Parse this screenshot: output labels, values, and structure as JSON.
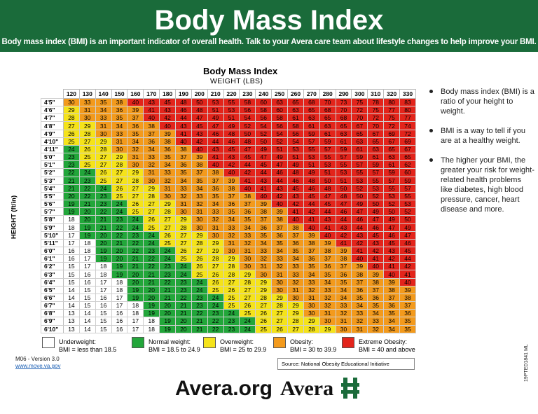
{
  "header": {
    "title": "Body Mass Index",
    "subtitle": "Body mass index (BMI) is an important indicator of overall health. Talk to your Avera care team about lifestyle changes to help improve your BMI."
  },
  "chart": {
    "title": "Body Mass Index",
    "weight_label": "WEIGHT (LBS)",
    "height_label": "HEIGHT (ft/in)"
  },
  "colors": {
    "underweight": "#ffffff",
    "normal": "#22a63a",
    "overweight": "#f5e31a",
    "obese": "#f39a1c",
    "extreme": "#e3241b",
    "header_bg": "#1a6b3a"
  },
  "chart_data": {
    "type": "table",
    "title": "Body Mass Index",
    "xlabel": "WEIGHT (LBS)",
    "ylabel": "HEIGHT (ft/in)",
    "columns": [
      "120",
      "130",
      "140",
      "150",
      "160",
      "170",
      "180",
      "190",
      "200",
      "210",
      "220",
      "230",
      "240",
      "250",
      "260",
      "270",
      "280",
      "290",
      "300",
      "310",
      "320",
      "330"
    ],
    "rows": [
      {
        "height": "4'5\"",
        "values": [
          30,
          33,
          35,
          38,
          40,
          43,
          45,
          48,
          50,
          53,
          55,
          58,
          60,
          63,
          65,
          68,
          70,
          73,
          75,
          78,
          80,
          83
        ]
      },
      {
        "height": "4'6\"",
        "values": [
          29,
          31,
          34,
          36,
          39,
          41,
          43,
          46,
          48,
          51,
          53,
          56,
          58,
          60,
          63,
          65,
          68,
          70,
          72,
          75,
          77,
          80
        ]
      },
      {
        "height": "4'7\"",
        "values": [
          28,
          30,
          33,
          35,
          37,
          40,
          42,
          44,
          47,
          49,
          51,
          54,
          56,
          58,
          61,
          63,
          65,
          68,
          70,
          72,
          75,
          77
        ]
      },
      {
        "height": "4'8\"",
        "values": [
          27,
          29,
          31,
          34,
          36,
          38,
          40,
          43,
          45,
          47,
          49,
          52,
          54,
          56,
          58,
          61,
          63,
          65,
          67,
          70,
          72,
          74
        ]
      },
      {
        "height": "4'9\"",
        "values": [
          26,
          28,
          30,
          33,
          35,
          37,
          39,
          41,
          43,
          46,
          48,
          50,
          52,
          54,
          56,
          59,
          61,
          63,
          65,
          67,
          69,
          72
        ]
      },
      {
        "height": "4'10\"",
        "values": [
          25,
          27,
          29,
          31,
          34,
          36,
          38,
          40,
          42,
          44,
          46,
          48,
          50,
          52,
          54,
          57,
          59,
          61,
          63,
          65,
          67,
          69
        ]
      },
      {
        "height": "4'11\"",
        "values": [
          24,
          26,
          28,
          30,
          32,
          34,
          36,
          38,
          40,
          43,
          45,
          47,
          49,
          51,
          53,
          55,
          57,
          59,
          61,
          63,
          65,
          67
        ]
      },
      {
        "height": "5'0\"",
        "values": [
          23,
          25,
          27,
          29,
          31,
          33,
          35,
          37,
          39,
          41,
          43,
          45,
          47,
          49,
          51,
          53,
          55,
          57,
          59,
          61,
          63,
          65
        ]
      },
      {
        "height": "5'1\"",
        "values": [
          23,
          25,
          27,
          28,
          30,
          32,
          34,
          36,
          38,
          40,
          42,
          44,
          45,
          47,
          49,
          51,
          53,
          55,
          57,
          59,
          61,
          62
        ]
      },
      {
        "height": "5'2\"",
        "values": [
          22,
          24,
          26,
          27,
          29,
          31,
          33,
          35,
          37,
          38,
          40,
          42,
          44,
          46,
          48,
          49,
          51,
          53,
          55,
          57,
          59,
          60
        ]
      },
      {
        "height": "5'3\"",
        "values": [
          21,
          23,
          25,
          27,
          28,
          30,
          32,
          34,
          35,
          37,
          39,
          41,
          43,
          44,
          46,
          48,
          50,
          51,
          53,
          55,
          57,
          59
        ]
      },
      {
        "height": "5'4\"",
        "values": [
          21,
          22,
          24,
          26,
          27,
          29,
          31,
          33,
          34,
          36,
          38,
          40,
          41,
          43,
          45,
          46,
          48,
          50,
          52,
          53,
          55,
          57
        ]
      },
      {
        "height": "5'5\"",
        "values": [
          20,
          22,
          23,
          25,
          27,
          28,
          30,
          32,
          33,
          35,
          37,
          38,
          40,
          42,
          43,
          45,
          47,
          48,
          50,
          52,
          53,
          55
        ]
      },
      {
        "height": "5'6\"",
        "values": [
          19,
          21,
          23,
          24,
          26,
          27,
          29,
          31,
          32,
          34,
          36,
          37,
          39,
          40,
          42,
          44,
          45,
          47,
          49,
          50,
          52,
          53
        ]
      },
      {
        "height": "5'7\"",
        "values": [
          19,
          20,
          22,
          24,
          25,
          27,
          28,
          30,
          31,
          33,
          35,
          36,
          38,
          39,
          41,
          42,
          44,
          46,
          47,
          49,
          50,
          52
        ]
      },
      {
        "height": "5'8\"",
        "values": [
          18,
          20,
          21,
          23,
          24,
          26,
          27,
          29,
          30,
          32,
          34,
          35,
          37,
          38,
          40,
          41,
          43,
          44,
          46,
          47,
          49,
          50
        ]
      },
      {
        "height": "5'9\"",
        "values": [
          18,
          19,
          21,
          22,
          24,
          25,
          27,
          28,
          30,
          31,
          33,
          34,
          36,
          37,
          38,
          40,
          41,
          43,
          44,
          46,
          47,
          49
        ]
      },
      {
        "height": "5'10\"",
        "values": [
          17,
          19,
          20,
          22,
          23,
          24,
          26,
          27,
          29,
          30,
          32,
          33,
          35,
          36,
          37,
          39,
          40,
          42,
          43,
          45,
          46,
          47
        ]
      },
      {
        "height": "5'11\"",
        "values": [
          17,
          18,
          20,
          21,
          22,
          24,
          25,
          27,
          28,
          29,
          31,
          32,
          34,
          35,
          36,
          38,
          39,
          41,
          42,
          43,
          45,
          46
        ]
      },
      {
        "height": "6'0\"",
        "values": [
          16,
          18,
          19,
          20,
          22,
          23,
          24,
          26,
          27,
          29,
          30,
          31,
          33,
          34,
          35,
          37,
          38,
          39,
          41,
          42,
          43,
          45
        ]
      },
      {
        "height": "6'1\"",
        "values": [
          16,
          17,
          19,
          20,
          21,
          22,
          24,
          25,
          26,
          28,
          29,
          30,
          32,
          33,
          34,
          36,
          37,
          38,
          40,
          41,
          42,
          44
        ]
      },
      {
        "height": "6'2\"",
        "values": [
          15,
          17,
          18,
          19,
          21,
          22,
          23,
          24,
          26,
          27,
          28,
          30,
          31,
          32,
          33,
          35,
          36,
          37,
          39,
          40,
          41,
          42
        ]
      },
      {
        "height": "6'3\"",
        "values": [
          15,
          16,
          18,
          19,
          20,
          21,
          23,
          24,
          25,
          26,
          28,
          29,
          30,
          31,
          33,
          34,
          35,
          36,
          38,
          39,
          40,
          41
        ]
      },
      {
        "height": "6'4\"",
        "values": [
          15,
          16,
          17,
          18,
          20,
          21,
          22,
          23,
          24,
          26,
          27,
          28,
          29,
          30,
          32,
          33,
          34,
          35,
          37,
          38,
          39,
          40
        ]
      },
      {
        "height": "6'5\"",
        "values": [
          14,
          15,
          17,
          18,
          19,
          20,
          21,
          23,
          24,
          25,
          26,
          27,
          29,
          30,
          31,
          32,
          33,
          34,
          36,
          37,
          38,
          39
        ]
      },
      {
        "height": "6'6\"",
        "values": [
          14,
          15,
          16,
          17,
          19,
          20,
          21,
          22,
          23,
          24,
          25,
          27,
          28,
          29,
          30,
          31,
          32,
          34,
          35,
          36,
          37,
          38
        ]
      },
      {
        "height": "6'7\"",
        "values": [
          14,
          15,
          16,
          17,
          18,
          19,
          20,
          21,
          23,
          24,
          25,
          26,
          27,
          28,
          29,
          30,
          32,
          33,
          34,
          35,
          36,
          37
        ]
      },
      {
        "height": "6'8\"",
        "values": [
          13,
          14,
          15,
          16,
          18,
          19,
          20,
          21,
          22,
          23,
          24,
          25,
          26,
          27,
          29,
          30,
          31,
          32,
          33,
          34,
          35,
          36
        ]
      },
      {
        "height": "6'9\"",
        "values": [
          13,
          14,
          15,
          16,
          17,
          18,
          19,
          20,
          21,
          22,
          23,
          24,
          26,
          27,
          28,
          29,
          30,
          31,
          32,
          33,
          34,
          35
        ]
      },
      {
        "height": "6'10\"",
        "values": [
          13,
          14,
          15,
          16,
          17,
          18,
          19,
          20,
          21,
          22,
          23,
          24,
          25,
          26,
          27,
          28,
          29,
          30,
          31,
          32,
          34,
          35
        ]
      }
    ]
  },
  "side_notes": [
    "Body mass index (BMI) is a ratio of your height to weight.",
    "BMI is a way to tell if you are at a healthy weight.",
    "The higher your BMI, the greater your risk for weight-related health problems like diabetes, high blood pressure, cancer, heart disease and more."
  ],
  "legend": [
    {
      "name": "Underweight:",
      "range": "BMI = less than 18.5",
      "color": "#ffffff"
    },
    {
      "name": "Normal weight:",
      "range": "BMI = 18.5 to 24.9",
      "color": "#22a63a"
    },
    {
      "name": "Overweight:",
      "range": "BMI = 25 to 29.9",
      "color": "#f5e31a"
    },
    {
      "name": "Obesity:",
      "range": "BMI = 30 to 39.9",
      "color": "#f39a1c"
    },
    {
      "name": "Extreme Obesity:",
      "range": "BMI = 40 and above",
      "color": "#e3241b"
    }
  ],
  "version": "M06 - Version 3.0",
  "website": "www.move.va.gov",
  "source": "Source: National Obesity Educational Initiative",
  "code": "19PTED1841 ML",
  "footer": {
    "url": "Avera.org",
    "logo_text": "Avera"
  }
}
